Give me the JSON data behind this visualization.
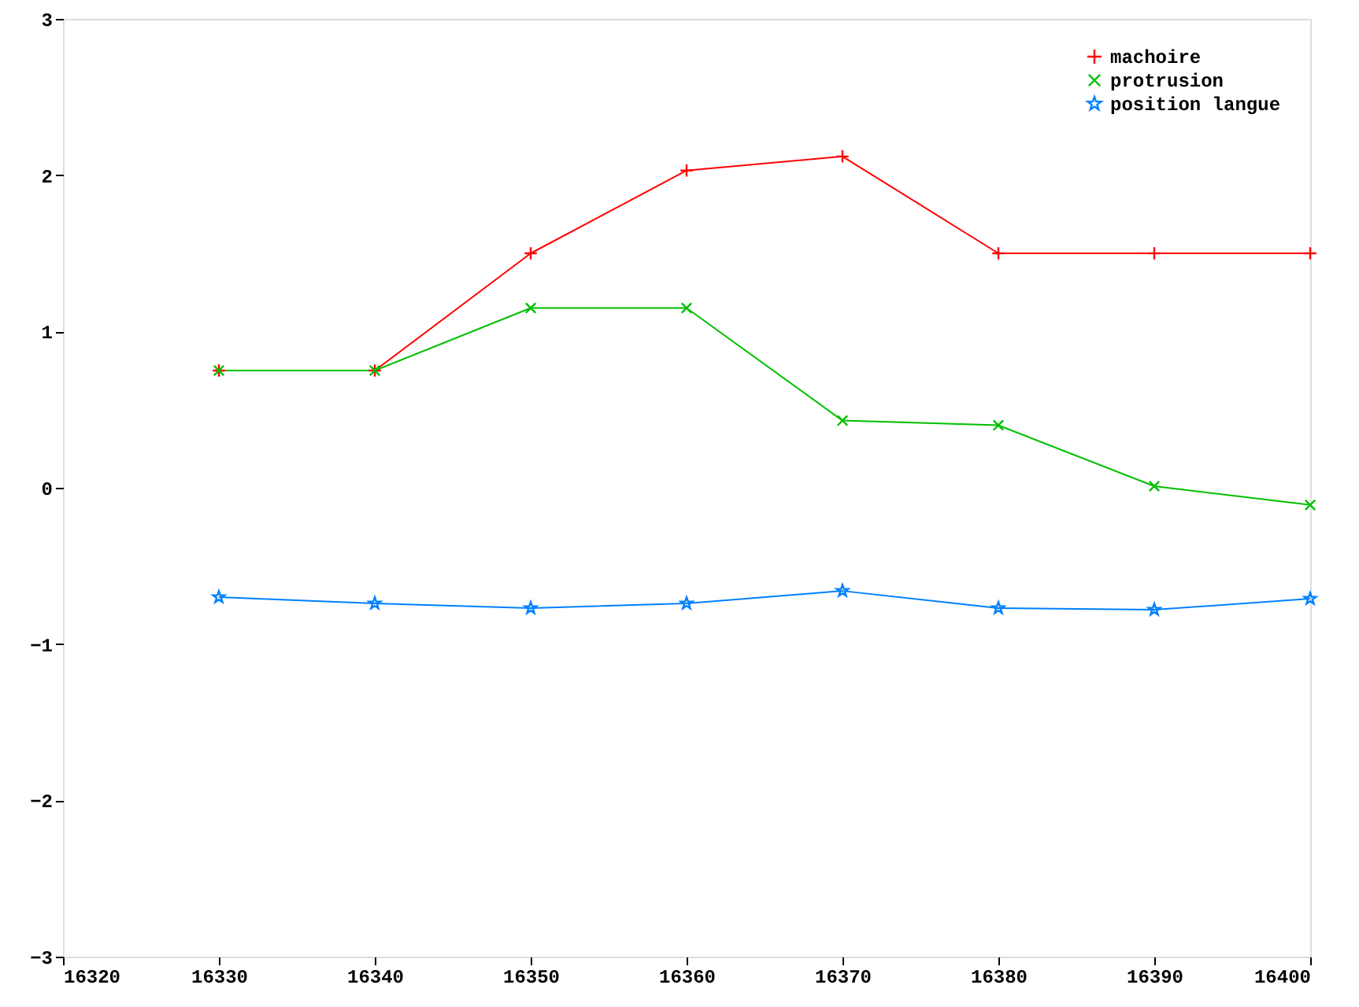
{
  "chart_data": {
    "type": "line",
    "x": [
      16330,
      16340,
      16350,
      16360,
      16370,
      16380,
      16390,
      16400
    ],
    "series": [
      {
        "name": "machoire",
        "color": "#ff0000",
        "marker": "cross",
        "values": [
          0.75,
          0.75,
          1.5,
          2.03,
          2.12,
          1.5,
          1.5,
          1.5
        ]
      },
      {
        "name": "protrusion",
        "color": "#00c000",
        "marker": "x",
        "values": [
          0.75,
          0.75,
          1.15,
          1.15,
          0.43,
          0.4,
          0.01,
          -0.11
        ]
      },
      {
        "name": "position langue",
        "color": "#0080ff",
        "marker": "star",
        "values": [
          -0.7,
          -0.74,
          -0.77,
          -0.74,
          -0.66,
          -0.77,
          -0.78,
          -0.71
        ]
      }
    ],
    "xlim": [
      16320,
      16400
    ],
    "xticks": [
      16320,
      16330,
      16340,
      16350,
      16360,
      16370,
      16380,
      16390,
      16400
    ],
    "ylim": [
      -3,
      3
    ],
    "yticks": [
      -3,
      -2,
      -1,
      0,
      1,
      2,
      3
    ],
    "grid": false,
    "legend": "top right",
    "line_style": "solid"
  }
}
